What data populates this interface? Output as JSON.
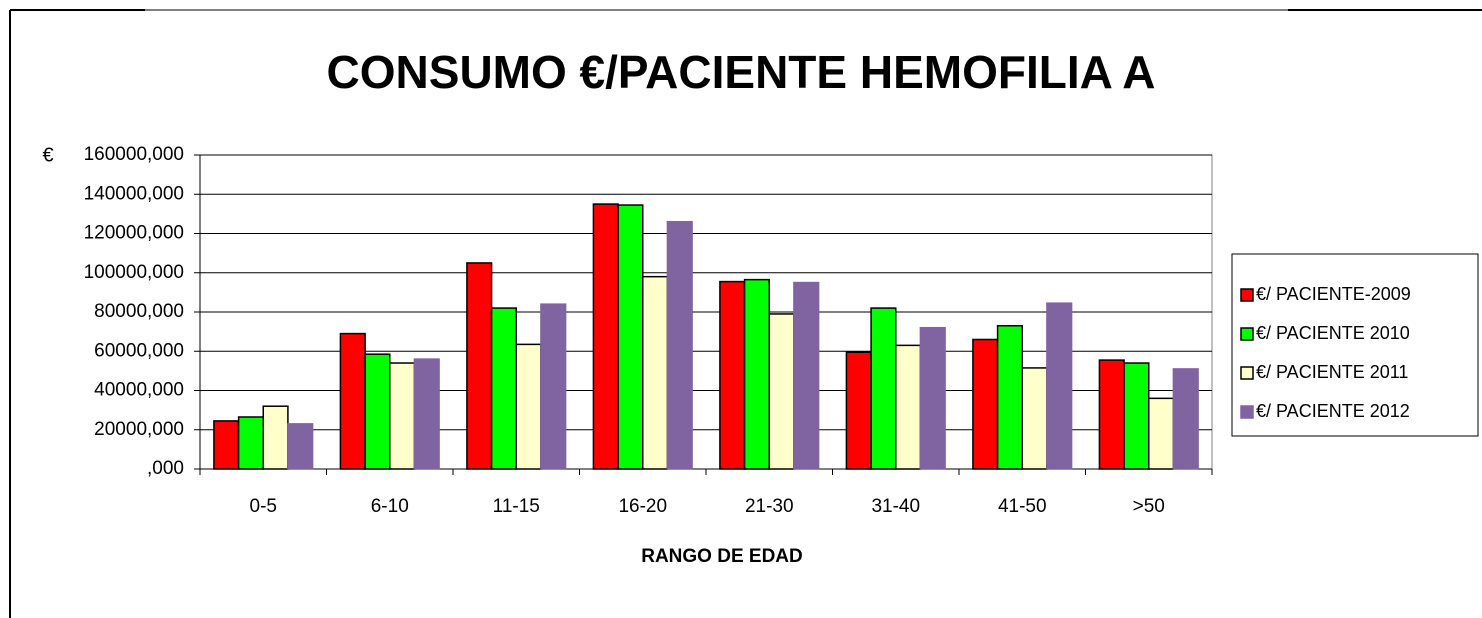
{
  "chart_data": {
    "type": "bar",
    "title": "CONSUMO €/PACIENTE HEMOFILIA A",
    "y_label": "€",
    "x_label": "RANGO DE EDAD",
    "categories": [
      "0-5",
      "6-10",
      "11-15",
      "16-20",
      "21-30",
      "31-40",
      "41-50",
      ">50"
    ],
    "series": [
      {
        "name": "€/ PACIENTE-2009",
        "color": "#ff0000",
        "edgecolor": "#000000",
        "values": [
          24500,
          69000,
          105000,
          135000,
          95500,
          59500,
          66000,
          55500
        ]
      },
      {
        "name": "€/ PACIENTE 2010",
        "color": "#00ff00",
        "edgecolor": "#000000",
        "values": [
          26500,
          58500,
          82000,
          134500,
          96500,
          82000,
          73000,
          54000
        ]
      },
      {
        "name": "€/ PACIENTE 2011",
        "color": "#ffffcc",
        "edgecolor": "#000000",
        "values": [
          32000,
          54000,
          63500,
          98000,
          79000,
          63000,
          51500,
          36000
        ]
      },
      {
        "name": "€/ PACIENTE 2012",
        "color": "#8064a2",
        "edgecolor": "#8064a2",
        "values": [
          23000,
          56000,
          84000,
          126000,
          95000,
          72000,
          84500,
          51000
        ]
      }
    ],
    "ylim": [
      0,
      160000
    ],
    "yticks": [
      {
        "value": 0,
        "label": ",000"
      },
      {
        "value": 20000,
        "label": "20000,000"
      },
      {
        "value": 40000,
        "label": "40000,000"
      },
      {
        "value": 60000,
        "label": "60000,000"
      },
      {
        "value": 80000,
        "label": "80000,000"
      },
      {
        "value": 100000,
        "label": "100000,000"
      },
      {
        "value": 120000,
        "label": "120000,000"
      },
      {
        "value": 140000,
        "label": "140000,000"
      },
      {
        "value": 160000,
        "label": "160000,000"
      }
    ],
    "grid": true,
    "legend": "right"
  }
}
